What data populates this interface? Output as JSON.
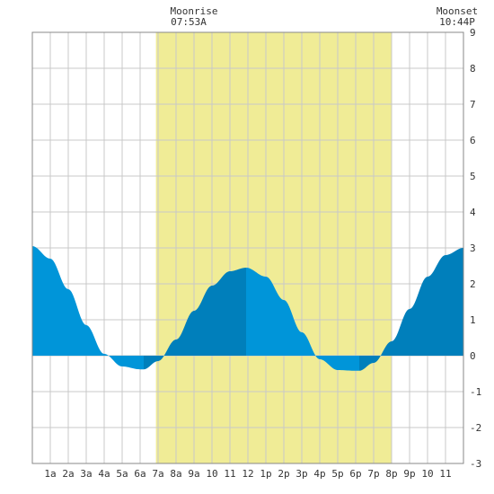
{
  "chart_data": {
    "type": "area",
    "title": "",
    "xlabel": "",
    "ylabel": "",
    "xlim": [
      0,
      24
    ],
    "ylim": [
      -3,
      9
    ],
    "grid": true,
    "x_tick_labels": [
      "1a",
      "2a",
      "3a",
      "4a",
      "5a",
      "6a",
      "7a",
      "8a",
      "9a",
      "10",
      "11",
      "12",
      "1p",
      "2p",
      "3p",
      "4p",
      "5p",
      "6p",
      "7p",
      "8p",
      "9p",
      "10",
      "11"
    ],
    "y_tick_labels": [
      "-3",
      "-2",
      "-1",
      "0",
      "1",
      "2",
      "3",
      "4",
      "5",
      "6",
      "7",
      "8",
      "9"
    ],
    "highlight_band": {
      "start_hour": 6.88,
      "end_hour": 20.0,
      "color": "#f0ec96"
    },
    "annotations": [
      {
        "label": "Moonrise",
        "time": "07:53A",
        "hour": 7.883
      },
      {
        "label": "Moonset",
        "time": "10:44P",
        "hour": 22.733
      }
    ],
    "series": [
      {
        "x": [
          0,
          1,
          2,
          3,
          4,
          5,
          6,
          6.2,
          7,
          8,
          9,
          10,
          11,
          11.9,
          13,
          14,
          15,
          16,
          17,
          18,
          18.2,
          19,
          20,
          21,
          22,
          23,
          24
        ],
        "values": [
          3.05,
          2.7,
          1.85,
          0.85,
          0.05,
          -0.3,
          -0.38,
          -0.38,
          -0.15,
          0.45,
          1.25,
          1.95,
          2.35,
          2.45,
          2.2,
          1.55,
          0.65,
          -0.1,
          -0.4,
          -0.42,
          -0.42,
          -0.2,
          0.4,
          1.3,
          2.2,
          2.8,
          3.0
        ]
      }
    ],
    "colors": {
      "light": "#0095d9",
      "dark": "#007fbb",
      "grid": "#c8c8c8",
      "frame": "#888888"
    },
    "dark_intervals": [
      [
        6.2,
        11.9
      ],
      [
        18.2,
        24
      ]
    ]
  }
}
